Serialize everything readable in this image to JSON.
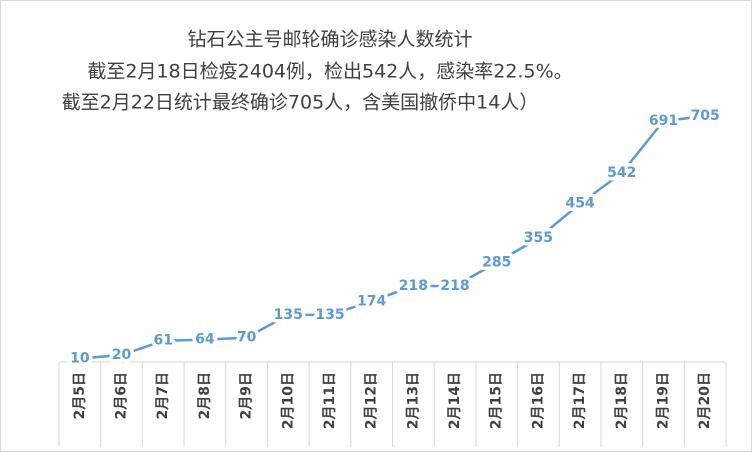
{
  "chart_data": {
    "type": "line",
    "title": [
      "钻石公主号邮轮确诊感染人数统计",
      "截至2月18日检疫2404例，检出542人，感染率22.5%。",
      "截至2月22日统计最终确诊705人，含美国撤侨中14人）"
    ],
    "categories": [
      "2月5日",
      "2月6日",
      "2月7日",
      "2月8日",
      "2月9日",
      "2月10日",
      "2月11日",
      "2月12日",
      "2月13日",
      "2月14日",
      "2月15日",
      "2月16日",
      "2月17日",
      "2月18日",
      "2月19日",
      "2月20日"
    ],
    "series": [
      {
        "color": "#5b9bd5",
        "values": [
          10,
          20,
          61,
          64,
          70,
          135,
          135,
          174,
          218,
          218,
          285,
          355,
          454,
          542,
          691,
          705
        ]
      }
    ],
    "ylim": [
      0,
      800
    ]
  }
}
